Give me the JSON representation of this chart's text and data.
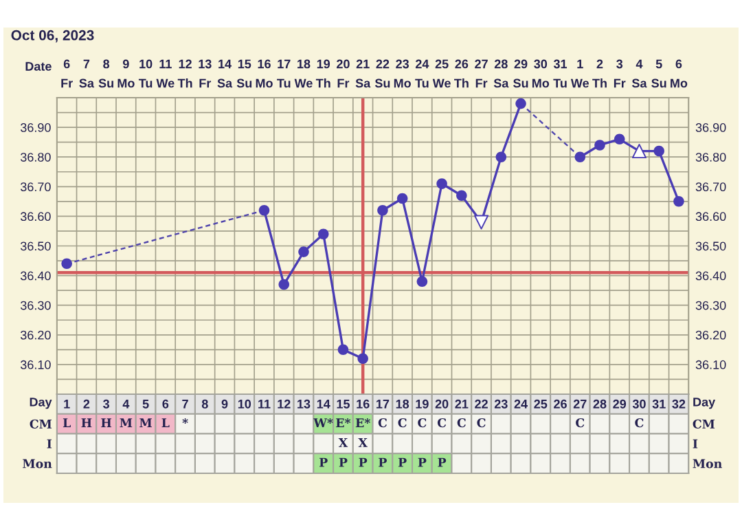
{
  "chart_data": [
    {
      "type": "line",
      "title": "Oct 06, 2023",
      "xlabel": "Date",
      "categories": [
        "6\nFr",
        "7\nSa",
        "8\nSu",
        "9\nMo",
        "10\nTu",
        "11\nWe",
        "12\nTh",
        "13\nFr",
        "14\nSa",
        "15\nSu",
        "16\nMo",
        "17\nTu",
        "18\nWe",
        "19\nTh",
        "20\nFr",
        "21\nSa",
        "22\nSu",
        "23\nMo",
        "24\nTu",
        "25\nWe",
        "26\nTh",
        "27\nFr",
        "28\nSa",
        "29\nSu",
        "30\nMo",
        "31\nTu",
        "1\nWe",
        "2\nTh",
        "3\nFr",
        "4\nSa",
        "5\nSu",
        "6\nMo"
      ],
      "ylim": [
        36.0,
        37.0
      ],
      "yticks": [
        {
          "value": 36.0,
          "label": null
        },
        {
          "value": 36.05,
          "label": null
        },
        {
          "value": 36.1,
          "label": "36.10"
        },
        {
          "value": 36.15,
          "label": null
        },
        {
          "value": 36.2,
          "label": "36.20"
        },
        {
          "value": 36.25,
          "label": null
        },
        {
          "value": 36.3,
          "label": "36.30"
        },
        {
          "value": 36.35,
          "label": null
        },
        {
          "value": 36.4,
          "label": "36.40"
        },
        {
          "value": 36.45,
          "label": null
        },
        {
          "value": 36.5,
          "label": "36.50"
        },
        {
          "value": 36.55,
          "label": null
        },
        {
          "value": 36.6,
          "label": "36.60"
        },
        {
          "value": 36.65,
          "label": null
        },
        {
          "value": 36.7,
          "label": "36.70"
        },
        {
          "value": 36.75,
          "label": null
        },
        {
          "value": 36.8,
          "label": "36.80"
        },
        {
          "value": 36.85,
          "label": null
        },
        {
          "value": 36.9,
          "label": "36.90"
        },
        {
          "value": 36.95,
          "label": null
        },
        {
          "value": 37.0,
          "label": null
        }
      ],
      "y2lim": [
        36.0,
        37.0
      ],
      "y2ticks": [
        {
          "value": 36.0,
          "label": null
        },
        {
          "value": 36.05,
          "label": null
        },
        {
          "value": 36.1,
          "label": "36.10"
        },
        {
          "value": 36.15,
          "label": null
        },
        {
          "value": 36.2,
          "label": "36.20"
        },
        {
          "value": 36.25,
          "label": null
        },
        {
          "value": 36.3,
          "label": "36.30"
        },
        {
          "value": 36.35,
          "label": null
        },
        {
          "value": 36.4,
          "label": "36.40"
        },
        {
          "value": 36.45,
          "label": null
        },
        {
          "value": 36.5,
          "label": "36.50"
        },
        {
          "value": 36.55,
          "label": null
        },
        {
          "value": 36.6,
          "label": "36.60"
        },
        {
          "value": 36.65,
          "label": null
        },
        {
          "value": 36.7,
          "label": "36.70"
        },
        {
          "value": 36.75,
          "label": null
        },
        {
          "value": 36.8,
          "label": "36.80"
        },
        {
          "value": 36.85,
          "label": null
        },
        {
          "value": 36.9,
          "label": "36.90"
        },
        {
          "value": 36.95,
          "label": null
        },
        {
          "value": 37.0,
          "label": null
        }
      ],
      "grid": true,
      "ref_lines": [
        {
          "axis": "y",
          "value": 36.41,
          "color": "#d35a5c"
        },
        {
          "axis": "x",
          "value": "21\nSa",
          "color": "#d35a5c"
        }
      ],
      "series": [
        {
          "type": "line",
          "color": "#4a3cb4",
          "line_style": "solid",
          "marker": "none",
          "values": [
            null,
            null,
            null,
            null,
            null,
            null,
            null,
            null,
            null,
            null,
            36.62,
            36.37,
            36.48,
            36.54,
            36.15,
            36.12,
            36.62,
            36.66,
            36.38,
            36.71,
            36.67,
            36.58,
            36.8,
            36.98,
            null,
            null,
            36.8,
            36.84,
            36.86,
            36.82,
            36.82,
            36.65
          ]
        },
        {
          "type": "line",
          "color": "#4f44ac",
          "line_style": "dashed",
          "marker": "none",
          "x": [
            "6\nFr",
            "16\nMo"
          ],
          "values": [
            36.44,
            36.62
          ]
        },
        {
          "type": "line",
          "color": "#5147ae",
          "line_style": "dashed",
          "marker": "none",
          "x": [
            "29\nSu",
            "1\nWe"
          ],
          "values": [
            36.98,
            36.8
          ]
        },
        {
          "type": "scatter",
          "color": "#4a3cb4",
          "marker": "circle",
          "values": [
            36.44,
            null,
            null,
            null,
            null,
            null,
            null,
            null,
            null,
            null,
            36.62,
            36.37,
            36.48,
            36.54,
            36.15,
            36.12,
            36.62,
            36.66,
            36.38,
            36.71,
            36.67,
            null,
            36.8,
            36.98,
            null,
            null,
            36.8,
            36.84,
            36.86,
            null,
            36.82,
            36.65
          ]
        },
        {
          "type": "scatter",
          "color": "#4a3cb4",
          "marker": "triangle_down",
          "x": [
            "27\nFr"
          ],
          "values": [
            36.58
          ]
        },
        {
          "type": "scatter",
          "color": "#4a3cb4",
          "marker": "triangle",
          "x": [
            "4\nSa"
          ],
          "values": [
            36.82
          ]
        }
      ]
    },
    {
      "type": "heatmap",
      "xlabel": "Day",
      "categories": [
        "1",
        "2",
        "3",
        "4",
        "5",
        "6",
        "7",
        "8",
        "9",
        "10",
        "11",
        "12",
        "13",
        "14",
        "15",
        "16",
        "17",
        "18",
        "19",
        "20",
        "21",
        "22",
        "23",
        "24",
        "25",
        "26",
        "27",
        "28",
        "29",
        "30",
        "31",
        "32"
      ],
      "y_categories": [
        "CM",
        "I",
        "Mon"
      ],
      "y2_categories": [
        "CM",
        "I",
        "Mon"
      ],
      "cells": [
        [
          null,
          null,
          null,
          null,
          null,
          null,
          null,
          null,
          null,
          null,
          null,
          null,
          null,
          null,
          null,
          null,
          null,
          null,
          null,
          null,
          null,
          null,
          null,
          null,
          null,
          null,
          null,
          null,
          null,
          null,
          null,
          null
        ],
        [
          null,
          null,
          null,
          null,
          null,
          null,
          null,
          null,
          null,
          null,
          null,
          null,
          null,
          null,
          null,
          null,
          null,
          null,
          null,
          null,
          null,
          null,
          null,
          null,
          null,
          null,
          null,
          null,
          null,
          null,
          null,
          null
        ],
        [
          null,
          null,
          null,
          null,
          null,
          null,
          null,
          null,
          null,
          null,
          null,
          null,
          null,
          null,
          null,
          null,
          null,
          null,
          null,
          null,
          null,
          null,
          null,
          null,
          null,
          null,
          null,
          null,
          null,
          null,
          null,
          null
        ]
      ],
      "cell_labels": [
        [
          "L",
          "H",
          "H",
          "M",
          "M",
          "L",
          "*",
          null,
          null,
          null,
          null,
          null,
          null,
          "W*",
          "E*",
          "E*",
          "C",
          "C",
          "C",
          "C",
          "C",
          "C",
          null,
          null,
          null,
          null,
          "C",
          null,
          null,
          "C",
          null,
          null
        ],
        [
          null,
          null,
          null,
          null,
          null,
          null,
          null,
          null,
          null,
          null,
          null,
          null,
          null,
          null,
          "X",
          "X",
          null,
          null,
          null,
          null,
          null,
          null,
          null,
          null,
          null,
          null,
          null,
          null,
          null,
          null,
          null,
          null
        ],
        [
          null,
          null,
          null,
          null,
          null,
          null,
          null,
          null,
          null,
          null,
          null,
          null,
          null,
          "P",
          "P",
          "P",
          "P",
          "P",
          "P",
          "P",
          null,
          null,
          null,
          null,
          null,
          null,
          null,
          null,
          null,
          null,
          null,
          null
        ]
      ],
      "colors": [
        [
          "#f2b8c8",
          "#f2b8c8",
          "#f2b8c8",
          "#f2b8c8",
          "#f2b8c8",
          "#f2b8c8",
          "#f5f5ef",
          "#f5f5ef",
          "#f5f5ef",
          "#f5f5ef",
          "#f5f5ef",
          "#f5f5ef",
          "#f5f5ef",
          "#a6e394",
          "#a6e394",
          "#a6e394",
          "#f5f5ef",
          "#f5f5ef",
          "#f5f5ef",
          "#f5f5ef",
          "#f5f5ef",
          "#f5f5ef",
          "#f5f5ef",
          "#f5f5ef",
          "#f5f5ef",
          "#f5f5ef",
          "#f5f5ef",
          "#f5f5ef",
          "#f5f5ef",
          "#f5f5ef",
          "#f5f5ef",
          "#f5f5ef"
        ],
        [
          "#f5f5ef",
          "#f5f5ef",
          "#f5f5ef",
          "#f5f5ef",
          "#f5f5ef",
          "#f5f5ef",
          "#f5f5ef",
          "#f5f5ef",
          "#f5f5ef",
          "#f5f5ef",
          "#f5f5ef",
          "#f5f5ef",
          "#f5f5ef",
          "#f5f5ef",
          "#f5f5ef",
          "#f5f5ef",
          "#f5f5ef",
          "#f5f5ef",
          "#f5f5ef",
          "#f5f5ef",
          "#f5f5ef",
          "#f5f5ef",
          "#f5f5ef",
          "#f5f5ef",
          "#f5f5ef",
          "#f5f5ef",
          "#f5f5ef",
          "#f5f5ef",
          "#f5f5ef",
          "#f5f5ef",
          "#f5f5ef",
          "#f5f5ef"
        ],
        [
          "#f5f5ef",
          "#f5f5ef",
          "#f5f5ef",
          "#f5f5ef",
          "#f5f5ef",
          "#f5f5ef",
          "#f5f5ef",
          "#f5f5ef",
          "#f5f5ef",
          "#f5f5ef",
          "#f5f5ef",
          "#f5f5ef",
          "#f5f5ef",
          "#a6e394",
          "#a6e394",
          "#a6e394",
          "#a6e394",
          "#a6e394",
          "#a6e394",
          "#a6e394",
          "#f5f5ef",
          "#f5f5ef",
          "#f5f5ef",
          "#f5f5ef",
          "#f5f5ef",
          "#f5f5ef",
          "#f5f5ef",
          "#f5f5ef",
          "#f5f5ef",
          "#f5f5ef",
          "#f5f5ef",
          "#f5f5ef"
        ]
      ]
    }
  ]
}
